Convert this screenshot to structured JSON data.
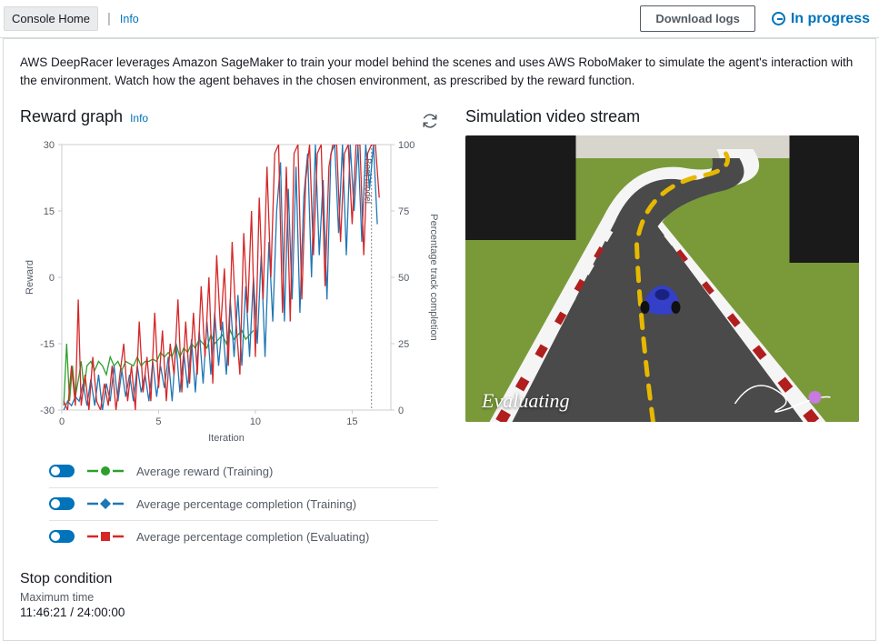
{
  "topbar": {
    "console_home": "Console Home",
    "info": "Info",
    "download_logs": "Download logs",
    "status_text": "In progress"
  },
  "description": "AWS DeepRacer leverages Amazon SageMaker to train your model behind the scenes and uses AWS RoboMaker to simulate the agent's interaction with the environment. Watch how the agent behaves in the chosen environment, as prescribed by the reward function.",
  "reward_graph": {
    "title": "Reward graph",
    "info": "Info",
    "xlabel": "Iteration",
    "ylabel_left": "Reward",
    "ylabel_right": "Percentage track completion",
    "best_model_label": "Best model",
    "xlim": [
      0,
      17
    ],
    "xticks": [
      0,
      5,
      10,
      15
    ],
    "left_ylim": [
      -30,
      30
    ],
    "left_yticks": [
      -30,
      -15,
      0,
      15,
      30
    ],
    "right_ylim": [
      0,
      100
    ],
    "right_yticks": [
      0,
      25,
      50,
      75,
      100
    ],
    "best_model_x": 16,
    "axis_color": "#cccccc",
    "text_color": "#545b64",
    "font_size": 11,
    "series": {
      "avg_reward_training": {
        "color": "#2ca02c",
        "marker": "circle",
        "dash": "4,3",
        "data": [
          [
            0.1,
            -29
          ],
          [
            0.25,
            -15
          ],
          [
            0.4,
            -28
          ],
          [
            0.55,
            -20
          ],
          [
            0.7,
            -27
          ],
          [
            0.9,
            -22
          ],
          [
            1.0,
            -19
          ],
          [
            1.15,
            -25
          ],
          [
            1.3,
            -20
          ],
          [
            1.5,
            -19
          ],
          [
            1.7,
            -21
          ],
          [
            1.9,
            -19
          ],
          [
            2.1,
            -20
          ],
          [
            2.3,
            -22
          ],
          [
            2.5,
            -18
          ],
          [
            2.7,
            -20
          ],
          [
            2.9,
            -19
          ],
          [
            3.1,
            -21
          ],
          [
            3.3,
            -19
          ],
          [
            3.5,
            -19.5
          ],
          [
            3.7,
            -20
          ],
          [
            3.9,
            -18
          ],
          [
            4.1,
            -20
          ],
          [
            4.3,
            -19
          ],
          [
            4.5,
            -19
          ],
          [
            4.7,
            -18.5
          ],
          [
            4.9,
            -19
          ],
          [
            5.1,
            -17
          ],
          [
            5.3,
            -18
          ],
          [
            5.5,
            -17
          ],
          [
            5.7,
            -18
          ],
          [
            5.9,
            -15
          ],
          [
            6.1,
            -18
          ],
          [
            6.3,
            -16
          ],
          [
            6.5,
            -17
          ],
          [
            6.7,
            -15
          ],
          [
            6.9,
            -16
          ],
          [
            7.1,
            -14
          ],
          [
            7.3,
            -15
          ],
          [
            7.5,
            -16
          ],
          [
            7.7,
            -13
          ],
          [
            7.9,
            -15
          ],
          [
            8.1,
            -14
          ],
          [
            8.3,
            -13
          ],
          [
            8.5,
            -15
          ],
          [
            8.7,
            -12
          ],
          [
            8.9,
            -14
          ],
          [
            9.1,
            -13
          ],
          [
            9.3,
            -12
          ],
          [
            9.5,
            -14
          ],
          [
            9.7,
            -13
          ],
          [
            9.9,
            -12
          ]
        ]
      },
      "avg_pct_training": {
        "color": "#1f77b4",
        "marker": "diamond",
        "dash": "4,3",
        "data": [
          [
            0.1,
            -30
          ],
          [
            0.3,
            -28
          ],
          [
            0.5,
            -29
          ],
          [
            0.7,
            -27
          ],
          [
            0.9,
            -28
          ],
          [
            1.1,
            -24
          ],
          [
            1.3,
            -29
          ],
          [
            1.5,
            -23
          ],
          [
            1.7,
            -29
          ],
          [
            1.9,
            -22
          ],
          [
            2.1,
            -30
          ],
          [
            2.3,
            -24
          ],
          [
            2.5,
            -28
          ],
          [
            2.7,
            -20
          ],
          [
            2.9,
            -28
          ],
          [
            3.1,
            -21
          ],
          [
            3.3,
            -27
          ],
          [
            3.5,
            -22
          ],
          [
            3.7,
            -28
          ],
          [
            3.9,
            -20
          ],
          [
            4.1,
            -26
          ],
          [
            4.3,
            -22
          ],
          [
            4.5,
            -28
          ],
          [
            4.7,
            -19
          ],
          [
            4.9,
            -27
          ],
          [
            5.1,
            -20
          ],
          [
            5.3,
            -25
          ],
          [
            5.5,
            -18
          ],
          [
            5.7,
            -28
          ],
          [
            5.9,
            -15
          ],
          [
            6.1,
            -26
          ],
          [
            6.3,
            -17
          ],
          [
            6.5,
            -25
          ],
          [
            6.7,
            -14
          ],
          [
            6.9,
            -26
          ],
          [
            7.1,
            -12
          ],
          [
            7.3,
            -24
          ],
          [
            7.5,
            -10
          ],
          [
            7.7,
            -22
          ],
          [
            7.9,
            -8
          ],
          [
            8.1,
            -20
          ],
          [
            8.3,
            -10
          ],
          [
            8.5,
            -22
          ],
          [
            8.7,
            -5
          ],
          [
            8.9,
            -18
          ],
          [
            9.1,
            -4
          ],
          [
            9.3,
            -20
          ],
          [
            9.5,
            -2
          ],
          [
            9.7,
            -18
          ],
          [
            9.9,
            0
          ],
          [
            10.1,
            -15
          ],
          [
            10.3,
            5
          ],
          [
            10.5,
            -18
          ],
          [
            10.7,
            8
          ],
          [
            10.9,
            -10
          ],
          [
            11.1,
            15
          ],
          [
            11.3,
            26
          ],
          [
            11.5,
            -10
          ],
          [
            11.7,
            20
          ],
          [
            11.9,
            -5
          ],
          [
            12.1,
            25
          ],
          [
            12.3,
            -8
          ],
          [
            12.5,
            18
          ],
          [
            12.7,
            28
          ],
          [
            12.9,
            0
          ],
          [
            13.1,
            30
          ],
          [
            13.3,
            5
          ],
          [
            13.5,
            22
          ],
          [
            13.7,
            -5
          ],
          [
            13.9,
            28
          ],
          [
            14.1,
            30
          ],
          [
            14.3,
            10
          ],
          [
            14.5,
            30
          ],
          [
            14.7,
            5
          ],
          [
            14.9,
            30
          ],
          [
            15.1,
            15
          ],
          [
            15.3,
            30
          ],
          [
            15.5,
            8
          ],
          [
            15.7,
            30
          ],
          [
            15.9,
            20
          ],
          [
            16.1,
            30
          ],
          [
            16.3,
            12
          ]
        ]
      },
      "avg_pct_evaluating": {
        "color": "#d62728",
        "marker": "square",
        "dash": "4,3",
        "data": [
          [
            0.1,
            -28
          ],
          [
            0.3,
            -30
          ],
          [
            0.5,
            -20
          ],
          [
            0.7,
            -29
          ],
          [
            0.85,
            -5
          ],
          [
            1.0,
            -29
          ],
          [
            1.2,
            -22
          ],
          [
            1.4,
            -30
          ],
          [
            1.6,
            -18
          ],
          [
            1.8,
            -28
          ],
          [
            2.0,
            -30
          ],
          [
            2.2,
            -24
          ],
          [
            2.4,
            -29
          ],
          [
            2.6,
            -20
          ],
          [
            2.8,
            -30
          ],
          [
            3.0,
            -22
          ],
          [
            3.2,
            -15
          ],
          [
            3.4,
            -28
          ],
          [
            3.6,
            -20
          ],
          [
            3.8,
            -30
          ],
          [
            4.0,
            -10
          ],
          [
            4.2,
            -26
          ],
          [
            4.4,
            -18
          ],
          [
            4.6,
            -28
          ],
          [
            4.8,
            -8
          ],
          [
            5.0,
            -25
          ],
          [
            5.2,
            -12
          ],
          [
            5.4,
            -28
          ],
          [
            5.6,
            -15
          ],
          [
            5.8,
            -22
          ],
          [
            6.0,
            -5
          ],
          [
            6.2,
            -26
          ],
          [
            6.4,
            -10
          ],
          [
            6.6,
            -24
          ],
          [
            6.8,
            -8
          ],
          [
            7.0,
            -22
          ],
          [
            7.2,
            -2
          ],
          [
            7.4,
            -18
          ],
          [
            7.6,
            0
          ],
          [
            7.8,
            -24
          ],
          [
            8.0,
            5
          ],
          [
            8.2,
            -12
          ],
          [
            8.4,
            2
          ],
          [
            8.6,
            -20
          ],
          [
            8.8,
            8
          ],
          [
            9.0,
            -10
          ],
          [
            9.2,
            -22
          ],
          [
            9.4,
            10
          ],
          [
            9.6,
            -8
          ],
          [
            9.8,
            15
          ],
          [
            10.0,
            -18
          ],
          [
            10.2,
            18
          ],
          [
            10.4,
            -5
          ],
          [
            10.6,
            25
          ],
          [
            10.8,
            0
          ],
          [
            11.0,
            28
          ],
          [
            11.2,
            30
          ],
          [
            11.4,
            -8
          ],
          [
            11.6,
            25
          ],
          [
            11.8,
            -10
          ],
          [
            12.0,
            28
          ],
          [
            12.2,
            30
          ],
          [
            12.4,
            -5
          ],
          [
            12.6,
            22
          ],
          [
            12.8,
            30
          ],
          [
            13.0,
            5
          ],
          [
            13.2,
            28
          ],
          [
            13.4,
            30
          ],
          [
            13.6,
            -2
          ],
          [
            13.8,
            25
          ],
          [
            14.0,
            30
          ],
          [
            14.2,
            30
          ],
          [
            14.4,
            8
          ],
          [
            14.6,
            28
          ],
          [
            14.8,
            30
          ],
          [
            15.0,
            12
          ],
          [
            15.2,
            30
          ],
          [
            15.4,
            30
          ],
          [
            15.6,
            5
          ],
          [
            15.8,
            28
          ],
          [
            16.0,
            30
          ],
          [
            16.2,
            30
          ],
          [
            16.4,
            18
          ]
        ]
      }
    }
  },
  "legend": [
    {
      "label": "Average reward (Training)",
      "color": "#2ca02c",
      "marker": "circle"
    },
    {
      "label": "Average percentage completion (Training)",
      "color": "#1f77b4",
      "marker": "diamond"
    },
    {
      "label": "Average percentage completion (Evaluating)",
      "color": "#d62728",
      "marker": "square"
    }
  ],
  "stop_condition": {
    "title": "Stop condition",
    "label": "Maximum time",
    "value": "11:46:21 / 24:00:00"
  },
  "simulation": {
    "title": "Simulation video stream",
    "overlay": "Evaluating",
    "scene": {
      "grass_color": "#7a9a3a",
      "road_color": "#4a4a4a",
      "curb_red": "#b01e1e",
      "curb_white": "#f5f5f5",
      "lane_yellow": "#e6b800",
      "wall_color": "#d8d5cc",
      "dark_building": "#1a1a1a",
      "car_color": "#3440c8",
      "orb_color": "#c77ae0"
    }
  }
}
